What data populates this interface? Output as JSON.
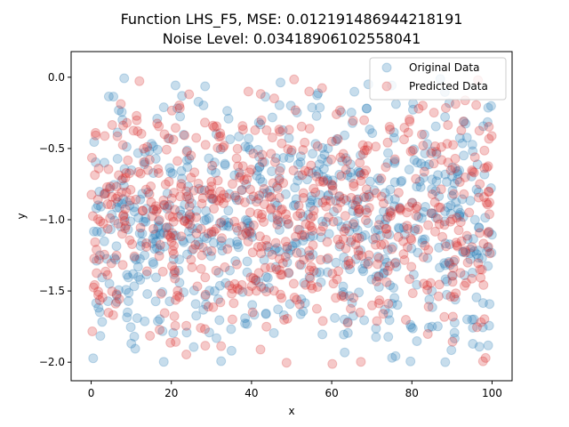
{
  "chart_data": {
    "type": "scatter",
    "title_lines": [
      "Function LHS_F5, MSE: 0.012191486944218191",
      "Noise Level: 0.03418906102558041"
    ],
    "xlabel": "x",
    "ylabel": "y",
    "xlim": [
      -5,
      105
    ],
    "ylim": [
      -2.13,
      0.18
    ],
    "xticks": [
      0,
      20,
      40,
      60,
      80,
      100
    ],
    "yticks": [
      0.0,
      -0.5,
      -1.0,
      -1.5,
      -2.0
    ],
    "xtick_labels": [
      "0",
      "20",
      "40",
      "60",
      "80",
      "100"
    ],
    "ytick_labels": [
      "0.0",
      "−0.5",
      "−1.0",
      "−1.5",
      "−2.0"
    ],
    "legend_position": "top-right",
    "grid": false,
    "x_range": [
      0,
      100
    ],
    "y_range": [
      -2.02,
      0.07
    ],
    "series": [
      {
        "name": "Original Data",
        "color": "#1f77b4",
        "alpha": 0.25,
        "seed": 11,
        "count": 700
      },
      {
        "name": "Predicted Data",
        "color": "#d62728",
        "alpha": 0.25,
        "seed": 29,
        "count": 700
      }
    ]
  }
}
